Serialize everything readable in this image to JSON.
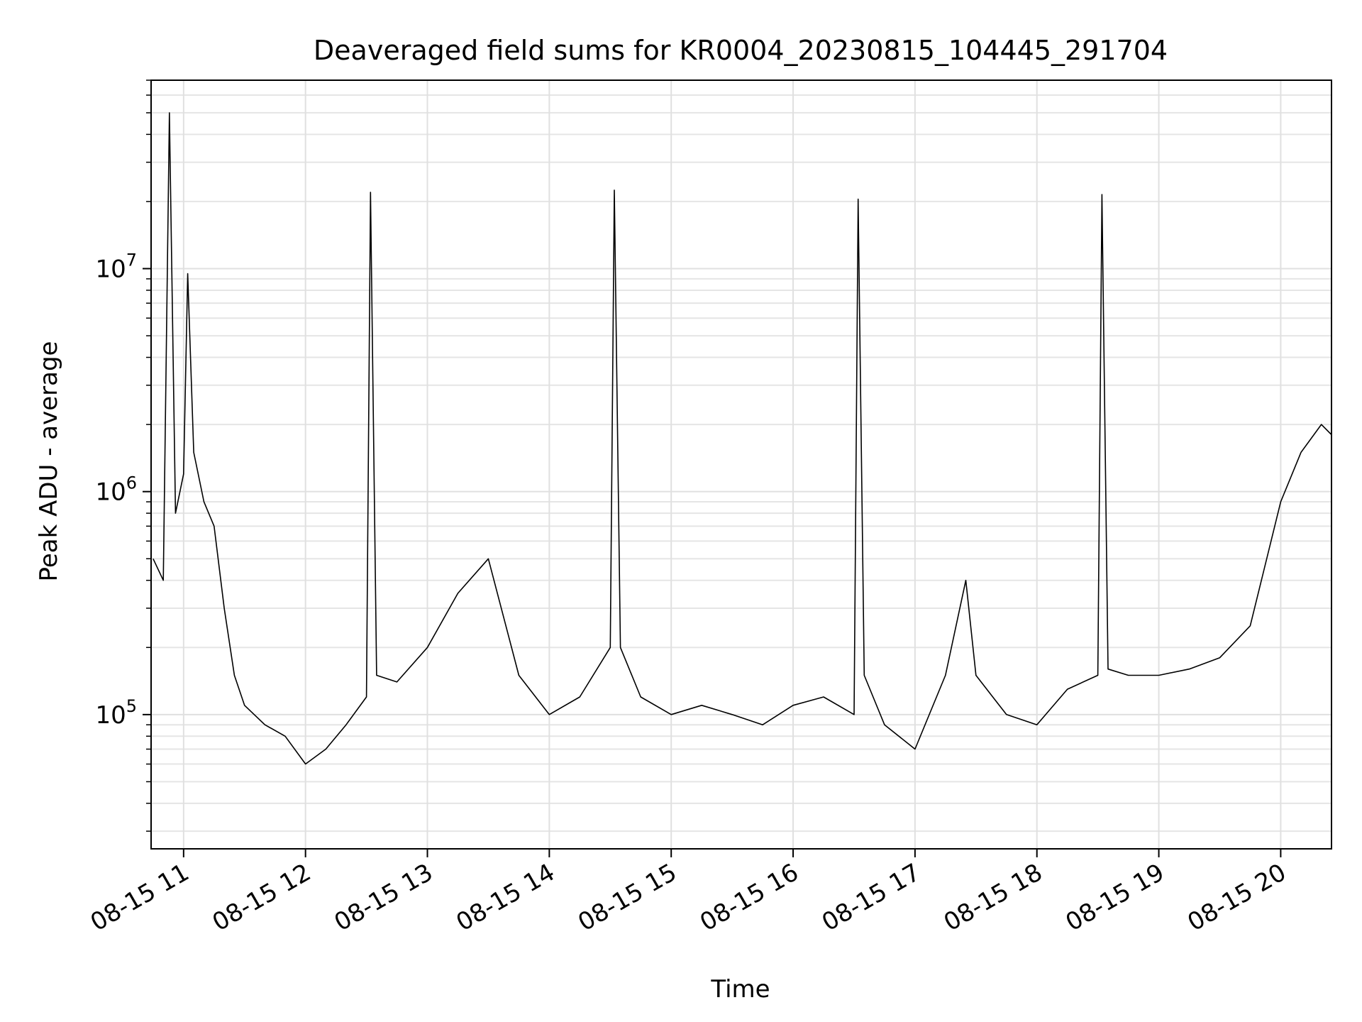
{
  "chart_data": {
    "type": "line",
    "title": "Deaveraged field sums for KR0004_20230815_104445_291704",
    "xlabel": "Time",
    "ylabel": "Peak ADU - average",
    "x_scale": "time",
    "y_scale": "log",
    "xlim": [
      "08-15 10:44",
      "08-15 20:25"
    ],
    "ylim": [
      25000,
      70000000
    ],
    "x_ticks": [
      "08-15 11",
      "08-15 12",
      "08-15 13",
      "08-15 14",
      "08-15 15",
      "08-15 16",
      "08-15 17",
      "08-15 18",
      "08-15 19",
      "08-15 20"
    ],
    "y_ticks": [
      {
        "value": 100000,
        "base": "10",
        "exp": "5"
      },
      {
        "value": 1000000,
        "base": "10",
        "exp": "6"
      },
      {
        "value": 10000000,
        "base": "10",
        "exp": "7"
      }
    ],
    "grid": true,
    "line_color": "#000000",
    "series": [
      {
        "x": [
          "08-15 10:45",
          "08-15 10:50",
          "08-15 10:53",
          "08-15 10:56",
          "08-15 11:00",
          "08-15 11:02",
          "08-15 11:05",
          "08-15 11:10",
          "08-15 11:15",
          "08-15 11:20",
          "08-15 11:25",
          "08-15 11:30",
          "08-15 11:40",
          "08-15 11:50",
          "08-15 12:00",
          "08-15 12:10",
          "08-15 12:20",
          "08-15 12:30",
          "08-15 12:32",
          "08-15 12:35",
          "08-15 12:45",
          "08-15 13:00",
          "08-15 13:15",
          "08-15 13:30",
          "08-15 13:45",
          "08-15 14:00",
          "08-15 14:15",
          "08-15 14:30",
          "08-15 14:32",
          "08-15 14:35",
          "08-15 14:45",
          "08-15 15:00",
          "08-15 15:15",
          "08-15 15:30",
          "08-15 15:45",
          "08-15 16:00",
          "08-15 16:15",
          "08-15 16:30",
          "08-15 16:32",
          "08-15 16:35",
          "08-15 16:45",
          "08-15 17:00",
          "08-15 17:15",
          "08-15 17:25",
          "08-15 17:30",
          "08-15 17:45",
          "08-15 18:00",
          "08-15 18:15",
          "08-15 18:30",
          "08-15 18:32",
          "08-15 18:35",
          "08-15 18:45",
          "08-15 19:00",
          "08-15 19:15",
          "08-15 19:30",
          "08-15 19:45",
          "08-15 20:00",
          "08-15 20:10",
          "08-15 20:20",
          "08-15 20:25"
        ],
        "values": [
          500000,
          400000,
          50000000,
          800000,
          1200000,
          9500000,
          1500000,
          900000,
          700000,
          300000,
          150000,
          110000,
          90000,
          80000,
          60000,
          70000,
          90000,
          120000,
          22000000,
          150000,
          140000,
          200000,
          350000,
          500000,
          150000,
          100000,
          120000,
          200000,
          22500000,
          200000,
          120000,
          100000,
          110000,
          100000,
          90000,
          110000,
          120000,
          100000,
          20500000,
          150000,
          90000,
          70000,
          150000,
          400000,
          150000,
          100000,
          90000,
          130000,
          150000,
          21500000,
          160000,
          150000,
          150000,
          160000,
          180000,
          250000,
          900000,
          1500000,
          2000000,
          1800000
        ]
      }
    ]
  }
}
